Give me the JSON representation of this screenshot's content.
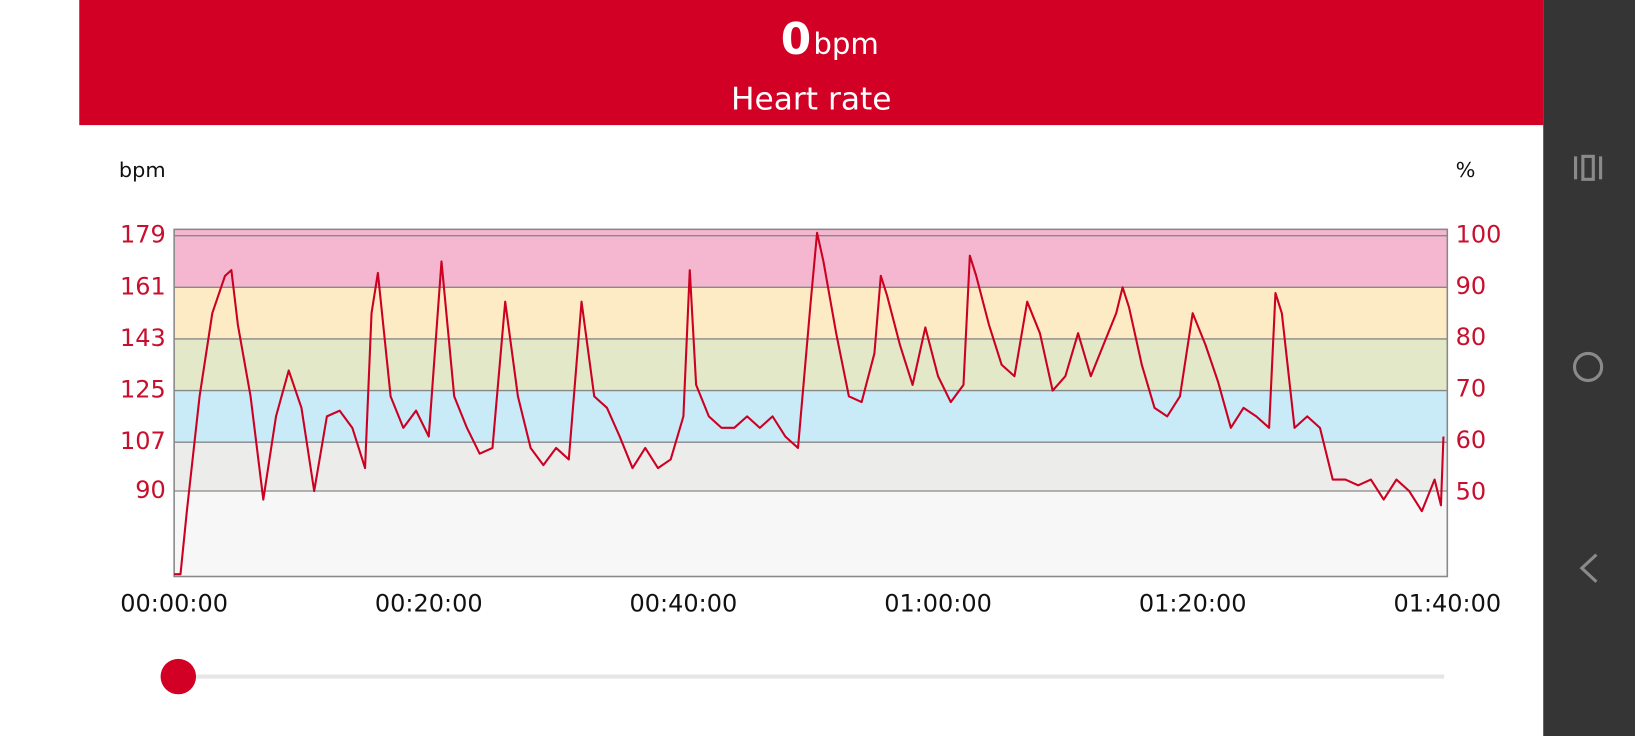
{
  "header": {
    "value": "0",
    "unit": "bpm",
    "label": "Heart rate"
  },
  "chart_data": {
    "type": "line",
    "y_label": "bpm",
    "y2_label": "%",
    "color": "#cc0022",
    "x": [
      0,
      0.5,
      1,
      2,
      3,
      4,
      4.5,
      5,
      6,
      7,
      8,
      9,
      10,
      11,
      12,
      13,
      14,
      15,
      15.5,
      16,
      17,
      18,
      19,
      20,
      21,
      22,
      23,
      24,
      25,
      26,
      27,
      28,
      29,
      30,
      31,
      32,
      33,
      34,
      35,
      36,
      37,
      38,
      39,
      40,
      40.5,
      41,
      42,
      43,
      44,
      45,
      46,
      47,
      48,
      49,
      50,
      50.5,
      51,
      52,
      53,
      54,
      55,
      55.5,
      56,
      57,
      58,
      59,
      60,
      61,
      62,
      62.5,
      63,
      64,
      65,
      66,
      67,
      68,
      69,
      70,
      71,
      72,
      73,
      74,
      74.5,
      75,
      76,
      77,
      78,
      79,
      80,
      81,
      82,
      83,
      84,
      85,
      86,
      86.5,
      87,
      88,
      89,
      90,
      91,
      92,
      93,
      94,
      95,
      96,
      97,
      98,
      99,
      99.5,
      99.7
    ],
    "values": [
      61,
      61,
      83,
      123,
      152,
      165,
      167,
      148,
      123,
      87,
      116,
      132,
      119,
      90,
      116,
      118,
      112,
      98,
      152,
      166,
      123,
      112,
      118,
      109,
      170,
      123,
      112,
      103,
      105,
      156,
      123,
      105,
      99,
      105,
      101,
      156,
      123,
      119,
      109,
      98,
      105,
      98,
      101,
      116,
      167,
      127,
      116,
      112,
      112,
      116,
      112,
      116,
      109,
      105,
      156,
      180,
      170,
      145,
      123,
      121,
      138,
      165,
      158,
      141,
      127,
      147,
      130,
      121,
      127,
      172,
      165,
      148,
      134,
      130,
      156,
      145,
      125,
      130,
      145,
      130,
      141,
      152,
      161,
      154,
      134,
      119,
      116,
      123,
      152,
      141,
      128,
      112,
      119,
      116,
      112,
      159,
      152,
      112,
      116,
      112,
      94,
      94,
      92,
      94,
      87,
      94,
      90,
      83,
      94,
      85,
      109
    ],
    "xlim": [
      0,
      100
    ],
    "xticks": [
      {
        "value": 0,
        "label": "00:00:00"
      },
      {
        "value": 20,
        "label": "00:20:00"
      },
      {
        "value": 40,
        "label": "00:40:00"
      },
      {
        "value": 60,
        "label": "01:00:00"
      },
      {
        "value": 80,
        "label": "01:20:00"
      },
      {
        "value": 100,
        "label": "01:40:00"
      }
    ],
    "ylim": [
      60.2,
      181.2
    ],
    "yticks": [
      90,
      107,
      125,
      143,
      161,
      179
    ],
    "y2lim": [
      33.6,
      101.2
    ],
    "y2ticks": [
      50,
      60,
      70,
      80,
      90,
      100
    ],
    "grid": true,
    "plot_bg": "#f7f7f7",
    "zones": [
      {
        "from": 90,
        "color": "#ececeb"
      },
      {
        "from": 107,
        "color": "#c9eaf7"
      },
      {
        "from": 125,
        "color": "#e2e8c8"
      },
      {
        "from": 143,
        "color": "#fdebc5"
      },
      {
        "from": 161,
        "color": "#f5b7cf"
      }
    ]
  }
}
